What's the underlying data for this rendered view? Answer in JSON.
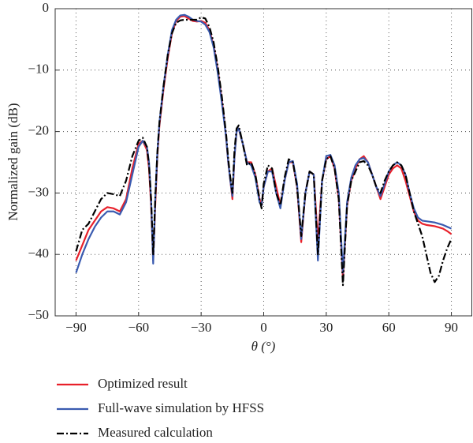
{
  "chart_data": {
    "type": "line",
    "xlabel": "θ (°)",
    "ylabel": "Normalized gain (dB)",
    "x": [
      -90,
      -87,
      -84,
      -81,
      -78,
      -75,
      -72,
      -69,
      -66,
      -63,
      -60,
      -58,
      -56,
      -55,
      -54,
      -53,
      -52,
      -51,
      -50,
      -48,
      -46,
      -44,
      -42,
      -40,
      -38,
      -36,
      -34,
      -32,
      -30,
      -28,
      -26,
      -24,
      -22,
      -20,
      -18,
      -17,
      -16,
      -15,
      -14,
      -13,
      -12,
      -10,
      -8,
      -6,
      -4,
      -2,
      -1,
      0,
      2,
      4,
      6,
      8,
      10,
      12,
      14,
      16,
      18,
      20,
      22,
      24,
      26,
      28,
      30,
      32,
      34,
      36,
      38,
      40,
      42,
      44,
      46,
      48,
      50,
      52,
      54,
      56,
      58,
      60,
      62,
      64,
      66,
      68,
      70,
      72,
      74,
      76,
      78,
      80,
      82,
      84,
      86,
      88,
      90
    ],
    "series": [
      {
        "name": "Optimized result",
        "color": "#e8202a",
        "style": "solid",
        "values": [
          -41,
          -38.5,
          -36,
          -34.5,
          -33,
          -32.3,
          -32.5,
          -33,
          -31,
          -26,
          -22,
          -21.5,
          -23,
          -26,
          -32,
          -41,
          -32,
          -24,
          -19,
          -13,
          -8,
          -4,
          -2,
          -1.3,
          -1.2,
          -1.6,
          -2,
          -2.1,
          -2,
          -2.3,
          -3.5,
          -6,
          -10,
          -15,
          -21,
          -25,
          -28,
          -31,
          -24,
          -20,
          -19.5,
          -22,
          -25,
          -25,
          -27,
          -31,
          -32,
          -29,
          -26.5,
          -26,
          -29,
          -32,
          -28,
          -25,
          -25,
          -29,
          -38,
          -30,
          -26.5,
          -27,
          -38,
          -28,
          -24.5,
          -24,
          -26,
          -31,
          -44,
          -32,
          -28,
          -26,
          -24.5,
          -24,
          -25,
          -27,
          -29,
          -31,
          -29,
          -27,
          -26,
          -25.5,
          -26,
          -28,
          -30.5,
          -33,
          -34.5,
          -35,
          -35.2,
          -35.3,
          -35.4,
          -35.6,
          -35.8,
          -36.2,
          -36.7
        ]
      },
      {
        "name": "Full-wave simulation by HFSS",
        "color": "#3a5bb0",
        "style": "solid",
        "values": [
          -43,
          -40,
          -37.5,
          -35.5,
          -34,
          -33,
          -33,
          -33.5,
          -31.5,
          -27,
          -22.5,
          -21.5,
          -22.5,
          -25,
          -31,
          -41.5,
          -31,
          -23.5,
          -18.5,
          -12.5,
          -7.5,
          -3.5,
          -1.8,
          -1.1,
          -1.0,
          -1.3,
          -1.8,
          -2.0,
          -2.1,
          -2.6,
          -3.8,
          -6.3,
          -10.5,
          -15.5,
          -21,
          -25,
          -28,
          -30.5,
          -24,
          -20,
          -19.5,
          -22,
          -25,
          -25.5,
          -27.5,
          -31.5,
          -32,
          -29,
          -26.5,
          -26.5,
          -30,
          -32.5,
          -28,
          -25,
          -24.8,
          -28.5,
          -37.5,
          -30,
          -26.5,
          -27,
          -41,
          -28,
          -24,
          -23.8,
          -25.5,
          -30,
          -43,
          -31.5,
          -27.5,
          -25.5,
          -24.5,
          -24.3,
          -25,
          -27,
          -29,
          -30.5,
          -28.5,
          -26.5,
          -25.5,
          -25,
          -25.5,
          -27,
          -30,
          -32.5,
          -34,
          -34.5,
          -34.6,
          -34.7,
          -34.8,
          -35,
          -35.2,
          -35.5,
          -35.8
        ]
      },
      {
        "name": "Measured calculation",
        "color": "#000000",
        "style": "dashdot",
        "values": [
          -39.5,
          -36,
          -35,
          -33,
          -31,
          -30,
          -30.2,
          -30.5,
          -28,
          -24,
          -21.5,
          -21,
          -22.5,
          -25.5,
          -31,
          -40,
          -31,
          -23.5,
          -18.5,
          -12.5,
          -7.5,
          -4,
          -2.3,
          -1.9,
          -1.8,
          -1.8,
          -1.8,
          -1.8,
          -1.4,
          -1.6,
          -3,
          -5.5,
          -9.5,
          -14.5,
          -20.5,
          -24.5,
          -27.5,
          -30,
          -23,
          -19.5,
          -19,
          -22,
          -25.5,
          -25,
          -27,
          -31,
          -32.5,
          -28.5,
          -25.5,
          -26,
          -30,
          -32,
          -27.5,
          -24.5,
          -25,
          -29,
          -37,
          -30,
          -26.5,
          -27,
          -40,
          -28,
          -24.5,
          -24,
          -26,
          -31,
          -45,
          -32,
          -28,
          -26.5,
          -25,
          -24.8,
          -25.5,
          -27,
          -29,
          -30,
          -28,
          -26.5,
          -25.5,
          -25,
          -25.5,
          -27,
          -30,
          -33,
          -35,
          -37,
          -40,
          -43,
          -44.5,
          -43.5,
          -41,
          -39,
          -37.5
        ]
      }
    ],
    "xlim": [
      -100,
      100
    ],
    "xticks": [
      {
        "value": -90,
        "label": "−90"
      },
      {
        "value": -60,
        "label": "−60"
      },
      {
        "value": -30,
        "label": "−30"
      },
      0,
      30,
      60,
      90
    ],
    "ylim": [
      -50,
      0
    ],
    "yticks": [
      {
        "value": -50,
        "label": "−50"
      },
      {
        "value": -40,
        "label": "−40"
      },
      {
        "value": -30,
        "label": "−30"
      },
      {
        "value": -20,
        "label": "−20"
      },
      {
        "value": -10,
        "label": "−10"
      },
      0
    ],
    "grid": true,
    "legend": "below"
  }
}
